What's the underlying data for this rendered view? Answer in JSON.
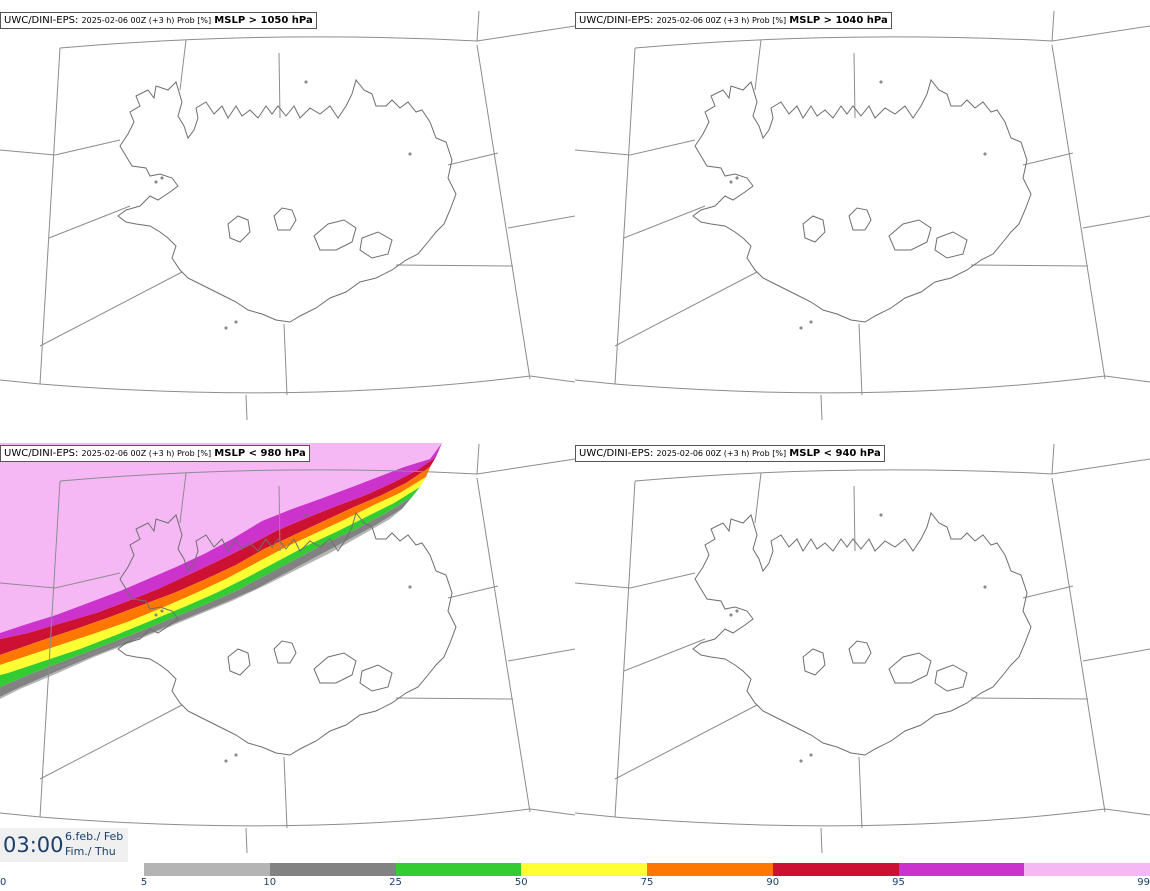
{
  "panels": [
    {
      "model": "UWC/DINI-EPS",
      "sep": ":",
      "meta": "2025-02-06 00Z (+3 h) Prob [%]",
      "param": "MSLP > 1050 hPa"
    },
    {
      "model": "UWC/DINI-EPS",
      "sep": ":",
      "meta": "2025-02-06 00Z (+3 h) Prob [%]",
      "param": "MSLP > 1040 hPa"
    },
    {
      "model": "UWC/DINI-EPS",
      "sep": ":",
      "meta": "2025-02-06 00Z (+3 h) Prob [%]",
      "param": "MSLP < 980 hPa"
    },
    {
      "model": "UWC/DINI-EPS",
      "sep": ":",
      "meta": "2025-02-06 00Z (+3 h) Prob [%]",
      "param": "MSLP < 940 hPa"
    }
  ],
  "time": {
    "value": "03:00",
    "date": "6.feb./ Feb",
    "day": "Fim./ Thu"
  },
  "colorbar": {
    "ticks": [
      "0",
      "5",
      "10",
      "25",
      "50",
      "75",
      "90",
      "95",
      "99"
    ],
    "colors": [
      "#b4b4b4",
      "#828282",
      "#33cc33",
      "#ffff33",
      "#ff7700",
      "#cc1133",
      "#cc33cc",
      "#f5b8f5"
    ]
  }
}
